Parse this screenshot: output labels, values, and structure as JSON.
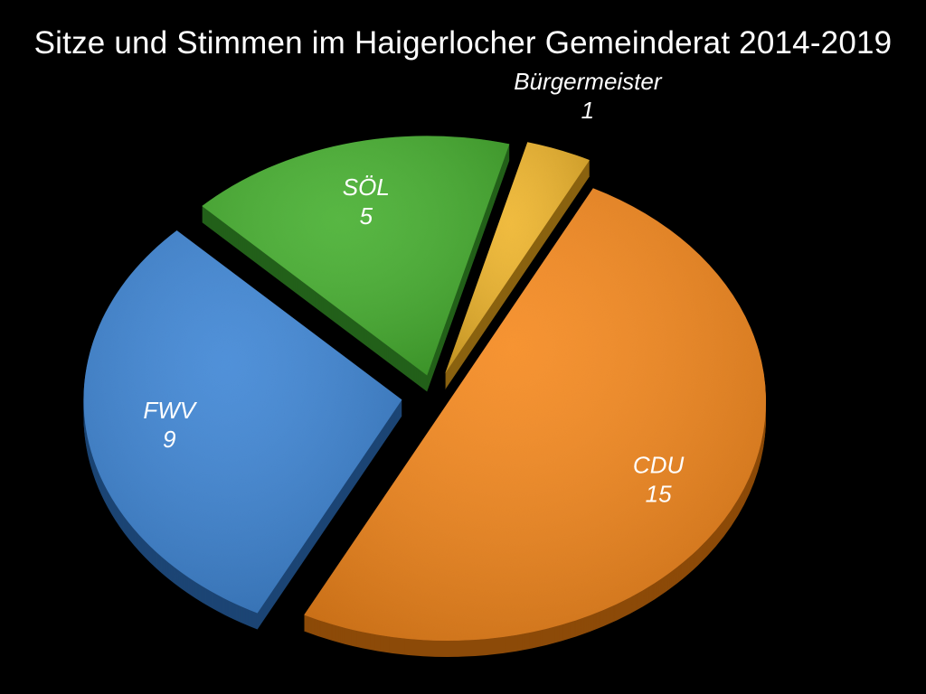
{
  "chart_data": {
    "type": "pie",
    "title": "Sitze und Stimmen im Haigerlocher Gemeinderat 2014-2019",
    "slices": [
      {
        "label": "Bürgermeister",
        "value": 1,
        "color": "#f0b52a",
        "side_color": "#8a6210"
      },
      {
        "label": "CDU",
        "value": 15,
        "color": "#f7891f",
        "side_color": "#8c4a08"
      },
      {
        "label": "FWV",
        "value": 9,
        "color": "#3d86d6",
        "side_color": "#1c4574"
      },
      {
        "label": "SÖL",
        "value": 5,
        "color": "#46b02e",
        "side_color": "#23601a"
      }
    ],
    "exploded": true,
    "three_d": true
  }
}
